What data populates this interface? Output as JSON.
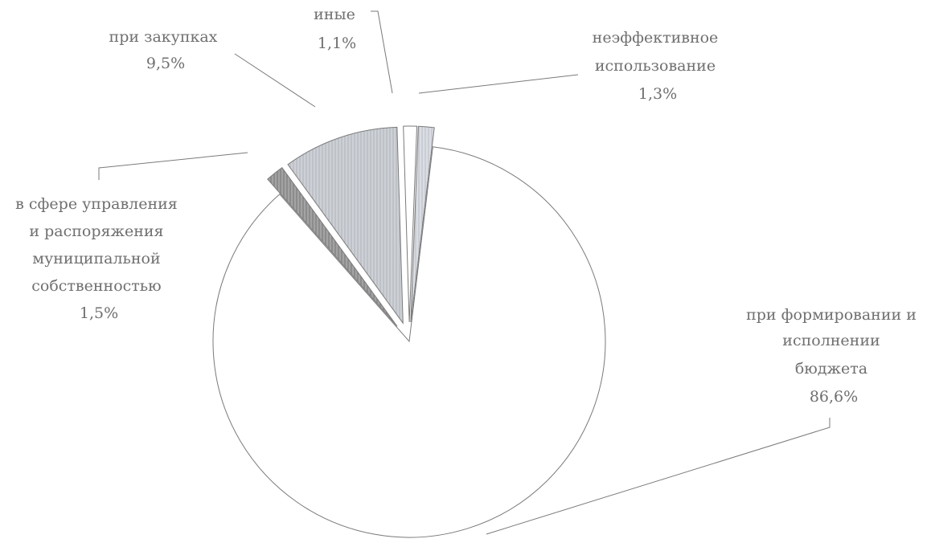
{
  "chart_data": {
    "type": "pie",
    "exploded": true,
    "legend": "none",
    "slices": [
      {
        "name": "при формировании и исполнении бюджета",
        "label_lines": [
          "при формировании и",
          "исполнении",
          "бюджета"
        ],
        "value_label": "86,6%",
        "value": 86.6,
        "fill": "#ffffff"
      },
      {
        "name": "в сфере управления и распоряжения муниципальной собственностью",
        "label_lines": [
          "в сфере управления",
          "и распоряжения",
          "муниципальной",
          "собственностью"
        ],
        "value_label": "1,5%",
        "value": 1.5,
        "fill": "#9a9a9a"
      },
      {
        "name": "при закупках",
        "label_lines": [
          "при закупках"
        ],
        "value_label": "9,5%",
        "value": 9.5,
        "fill": "#cdd1d6"
      },
      {
        "name": "иные",
        "label_lines": [
          "иные"
        ],
        "value_label": "1,1%",
        "value": 1.1,
        "fill": "#ffffff"
      },
      {
        "name": "неэффективное использование",
        "label_lines": [
          "неэффективное",
          "использование"
        ],
        "value_label": "1,3%",
        "value": 1.3,
        "fill": "#d8dbe2"
      }
    ],
    "colors": {
      "stroke": "#7a7a7a",
      "label": "#6f6f6f",
      "leader": "#7a7a7a"
    }
  }
}
